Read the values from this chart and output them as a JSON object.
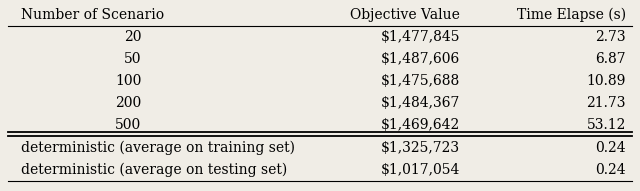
{
  "headers": [
    "Number of Scenario",
    "Objective Value",
    "Time Elapse (s)"
  ],
  "stochastic_rows": [
    [
      "20",
      "$1,477,845",
      "2.73"
    ],
    [
      "50",
      "$1,487,606",
      "6.87"
    ],
    [
      "100",
      "$1,475,688",
      "10.89"
    ],
    [
      "200",
      "$1,484,367",
      "21.73"
    ],
    [
      "500",
      "$1,469,642",
      "53.12"
    ]
  ],
  "deterministic_rows": [
    [
      "deterministic (average on training set)",
      "$1,325,723",
      "0.24"
    ],
    [
      "deterministic (average on testing set)",
      "$1,017,054",
      "0.24"
    ]
  ],
  "background_color": "#f0ede6",
  "text_color": "#000000",
  "fontsize": 10,
  "figsize": [
    6.4,
    1.91
  ]
}
